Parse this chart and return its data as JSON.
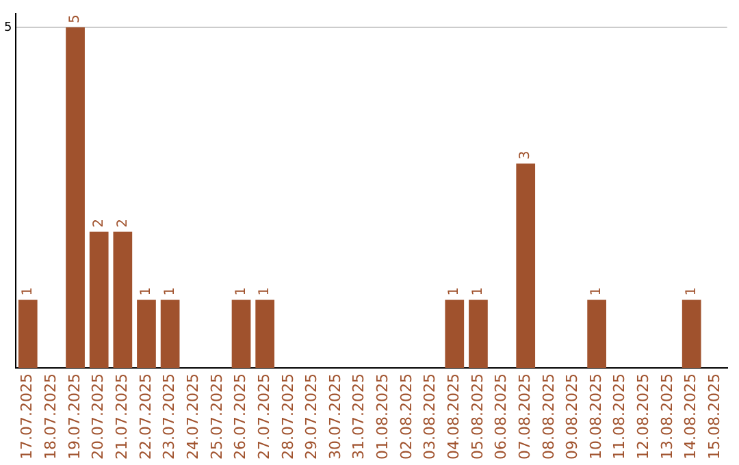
{
  "chart_data": {
    "type": "bar",
    "categories": [
      "17.07.2025",
      "18.07.2025",
      "19.07.2025",
      "20.07.2025",
      "21.07.2025",
      "22.07.2025",
      "23.07.2025",
      "24.07.2025",
      "25.07.2025",
      "26.07.2025",
      "27.07.2025",
      "28.07.2025",
      "29.07.2025",
      "30.07.2025",
      "31.07.2025",
      "01.08.2025",
      "02.08.2025",
      "03.08.2025",
      "04.08.2025",
      "05.08.2025",
      "06.08.2025",
      "07.08.2025",
      "08.08.2025",
      "09.08.2025",
      "10.08.2025",
      "11.08.2025",
      "12.08.2025",
      "13.08.2025",
      "14.08.2025",
      "15.08.2025"
    ],
    "values": [
      1,
      null,
      5,
      2,
      2,
      1,
      1,
      null,
      null,
      1,
      1,
      null,
      null,
      null,
      null,
      null,
      null,
      null,
      1,
      1,
      null,
      3,
      null,
      null,
      1,
      null,
      null,
      null,
      1,
      null
    ],
    "color": "#a0522d",
    "ylim": [
      0,
      5.2
    ],
    "yticks": [
      5
    ],
    "grid": "y",
    "data_labels": true,
    "legend": false
  }
}
